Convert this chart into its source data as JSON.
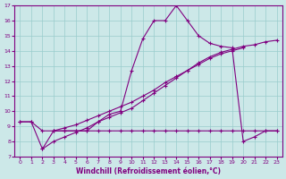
{
  "xlabel": "Windchill (Refroidissement éolien,°C)",
  "bg_color": "#cce8e8",
  "line_color": "#800080",
  "grid_color": "#99cccc",
  "xlim": [
    -0.5,
    23.5
  ],
  "ylim": [
    7,
    17
  ],
  "xticks": [
    0,
    1,
    2,
    3,
    4,
    5,
    6,
    7,
    8,
    9,
    10,
    11,
    12,
    13,
    14,
    15,
    16,
    17,
    18,
    19,
    20,
    21,
    22,
    23
  ],
  "yticks": [
    7,
    8,
    9,
    10,
    11,
    12,
    13,
    14,
    15,
    16,
    17
  ],
  "line1_x": [
    0,
    1,
    2,
    3,
    4,
    5,
    6,
    7,
    8,
    9,
    10,
    11,
    12,
    13,
    14,
    15,
    16,
    17,
    18,
    19,
    20,
    21,
    22,
    23
  ],
  "line1_y": [
    9.3,
    9.3,
    7.5,
    8.7,
    8.7,
    8.7,
    8.7,
    9.3,
    9.8,
    10.0,
    12.7,
    14.8,
    16.0,
    16.0,
    17.0,
    16.0,
    15.0,
    14.5,
    14.3,
    14.2,
    8.0,
    8.3,
    8.7,
    8.7
  ],
  "line2_x": [
    0,
    1,
    2,
    3,
    4,
    5,
    6,
    7,
    8,
    9,
    10,
    11,
    12,
    13,
    14,
    15,
    16,
    17,
    18,
    19,
    20,
    21,
    22,
    23
  ],
  "line2_y": [
    9.3,
    9.3,
    8.7,
    8.7,
    8.7,
    8.7,
    8.7,
    8.7,
    8.7,
    8.7,
    8.7,
    8.7,
    8.7,
    8.7,
    8.7,
    8.7,
    8.7,
    8.7,
    8.7,
    8.7,
    8.7,
    8.7,
    8.7,
    8.7
  ],
  "line3_x": [
    2,
    3,
    4,
    5,
    6,
    7,
    8,
    9,
    10,
    11,
    12,
    13,
    14,
    15,
    16,
    17,
    18,
    19,
    20,
    21,
    22,
    23
  ],
  "line3_y": [
    7.5,
    8.0,
    8.3,
    8.6,
    8.9,
    9.3,
    9.6,
    9.9,
    10.2,
    10.7,
    11.2,
    11.7,
    12.2,
    12.7,
    13.2,
    13.6,
    13.9,
    14.1,
    14.3,
    14.4,
    14.6,
    14.7
  ],
  "line4_x": [
    3,
    4,
    5,
    6,
    7,
    8,
    9,
    10,
    11,
    12,
    13,
    14,
    15,
    16,
    17,
    18,
    19,
    20
  ],
  "line4_y": [
    8.7,
    8.9,
    9.1,
    9.4,
    9.7,
    10.0,
    10.3,
    10.6,
    11.0,
    11.4,
    11.9,
    12.3,
    12.7,
    13.1,
    13.5,
    13.8,
    14.0,
    14.2
  ]
}
